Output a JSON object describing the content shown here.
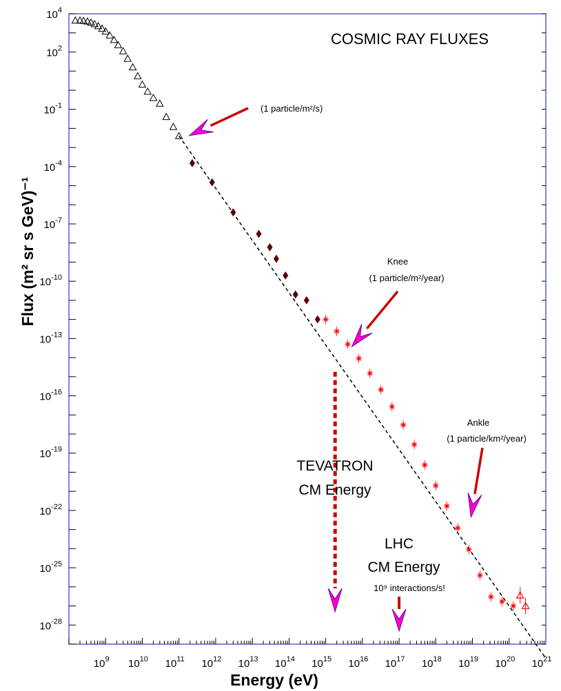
{
  "chart_data": {
    "type": "scatter",
    "title": "COSMIC RAY FLUXES",
    "xlabel": "Energy (eV)",
    "ylabel": "Flux (m² sr s GeV)⁻¹",
    "xscale": "log",
    "yscale": "log",
    "xlim": [
      100000000.0,
      1e+21
    ],
    "ylim": [
      1e-29,
      10000.0
    ],
    "grid": false,
    "x_ticks": [
      "10^9",
      "10^10",
      "10^11",
      "10^12",
      "10^13",
      "10^14",
      "10^15",
      "10^16",
      "10^17",
      "10^18",
      "10^19",
      "10^20",
      "10^21"
    ],
    "y_ticks": [
      "10^4",
      "10^2",
      "10^-1",
      "10^-4",
      "10^-7",
      "10^-10",
      "10^-13",
      "10^-16",
      "10^-19",
      "10^-22",
      "10^-25",
      "10^-28"
    ],
    "series": [
      {
        "marker": "open-triangle",
        "color": "#000000",
        "x": [
          150000000.0,
          200000000.0,
          250000000.0,
          320000000.0,
          400000000.0,
          500000000.0,
          630000000.0,
          800000000.0,
          1000000000.0,
          1300000000.0,
          1700000000.0,
          2200000000.0,
          3000000000.0,
          4000000000.0,
          5500000000.0,
          7500000000.0,
          10000000000.0,
          14000000000.0,
          20000000000.0,
          30000000000.0,
          45000000000.0,
          70000000000.0,
          100000000000.0
        ],
        "y": [
          4500,
          4500,
          4300,
          4000,
          3500,
          2900,
          2300,
          1700,
          1200,
          750,
          430,
          230,
          110,
          45,
          16,
          5.5,
          2.0,
          0.85,
          0.4,
          0.2,
          0.04,
          0.012,
          0.004
        ]
      },
      {
        "marker": "filled-diamond",
        "color": "#5a0000",
        "x": [
          230000000000.0,
          800000000000.0,
          3000000000000.0,
          15000000000000.0,
          30000000000000.0,
          45000000000000.0,
          80000000000000.0,
          150000000000000.0,
          300000000000000.0,
          600000000000000.0
        ],
        "y": [
          0.00015,
          1.5e-05,
          4e-07,
          3e-08,
          6e-09,
          1.5e-09,
          2e-10,
          2e-11,
          1e-11,
          1e-12
        ]
      },
      {
        "marker": "red-star",
        "color": "#ff0000",
        "x": [
          1000000000000000.0,
          2000000000000000.0,
          4000000000000000.0,
          8000000000000000.0,
          1.6e+16,
          3.2e+16,
          6.4e+16,
          1.3e+17,
          2.6e+17,
          5e+17,
          1e+18,
          2e+18,
          4e+18,
          8e+18,
          1.6e+19,
          3.2e+19,
          6.4e+19,
          1.3e+20
        ],
        "y": [
          1e-12,
          2.4e-13,
          5e-14,
          9e-15,
          1.5e-15,
          2.1e-16,
          2.7e-17,
          3e-18,
          2.8e-19,
          2.4e-20,
          2e-21,
          1.7e-22,
          1.2e-23,
          9e-25,
          4e-26,
          3e-27,
          1.7e-27,
          1e-27
        ]
      },
      {
        "marker": "red-triangle",
        "color": "#ff0000",
        "x": [
          2e+20,
          2.8e+20
        ],
        "y": [
          3.6e-27,
          1e-27
        ]
      }
    ],
    "fit_line": {
      "style": "dashed",
      "color": "#000000",
      "x": [
        100000000000.0,
        1e+21
      ],
      "y": [
        0.004,
        1.8e-30
      ]
    },
    "annotations": {
      "one_per_m2_s": "(1 particle/m²/s)",
      "knee_title": "Knee",
      "knee_rate": "(1 particle/m²/year)",
      "ankle_title": "Ankle",
      "ankle_rate": "(1 particle/km²/year)",
      "tevatron_line1": "TEVATRON",
      "tevatron_line2": "CM Energy",
      "lhc_line1": "LHC",
      "lhc_line2": "CM Energy",
      "lhc_rate": "10⁹ interactions/s!"
    },
    "markers": {
      "tevatron_energy": 1800000000000000.0,
      "lhc_energy": 1e+17,
      "knee_energy": 4000000000000000.0,
      "ankle_energy": 8e+18,
      "one_per_m2_s_energy": 100000000000.0
    },
    "colors": {
      "frame": "#3333cc",
      "arrow_body": "#cc0000",
      "arrow_head": "#ff00cc",
      "arrow_head_outline": "#6600aa"
    }
  }
}
